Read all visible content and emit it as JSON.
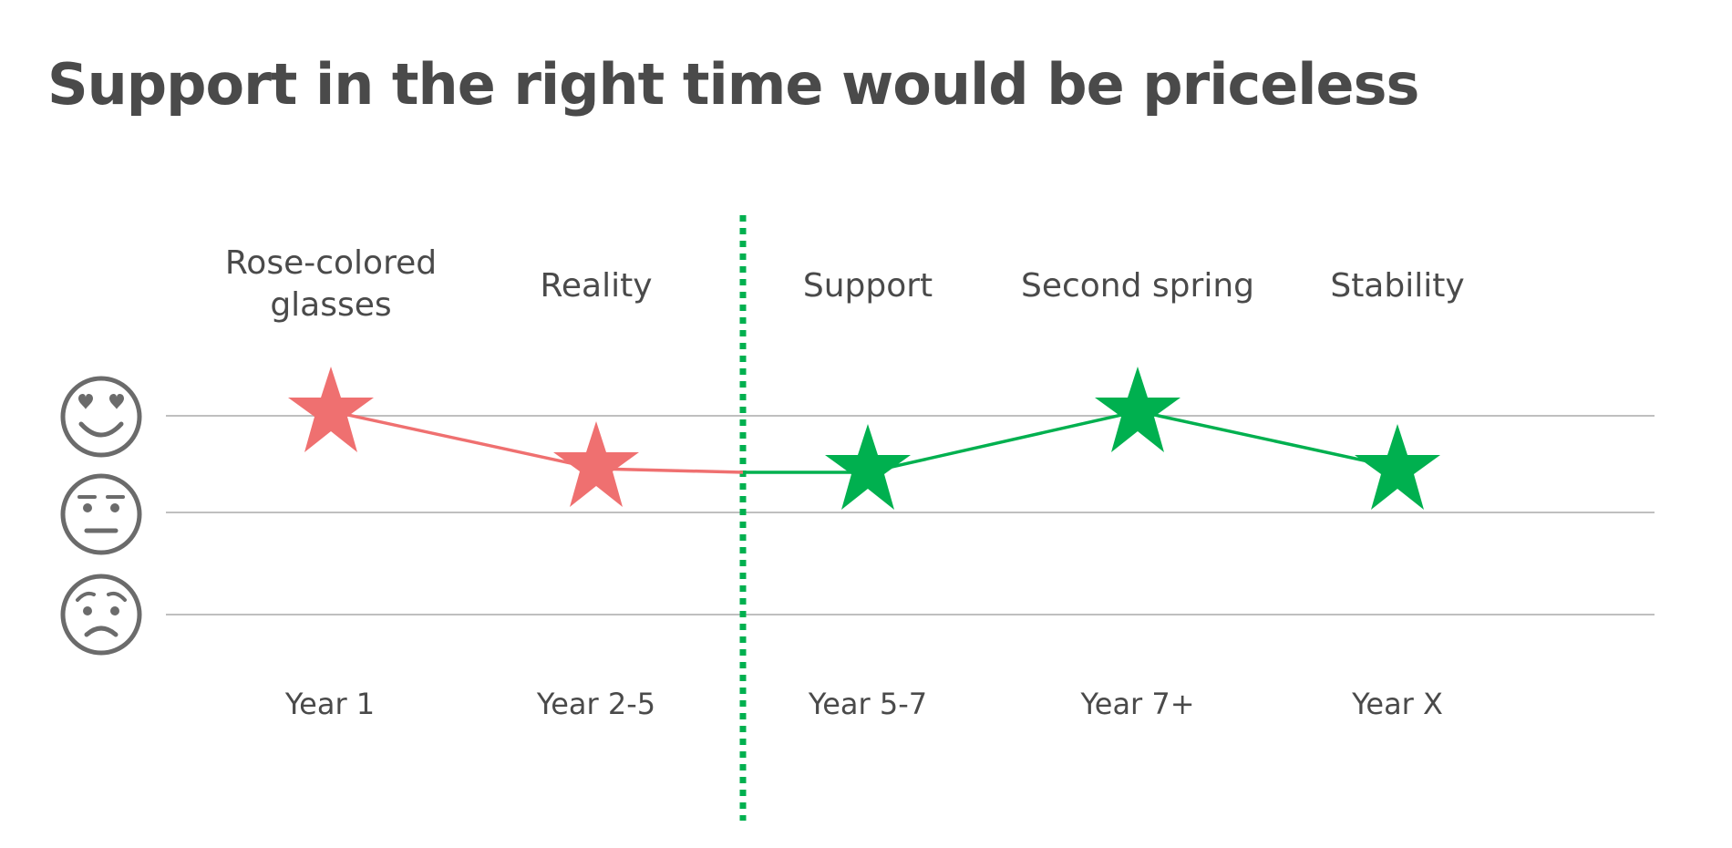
{
  "title": "Support in the right time would be priceless",
  "stages": [
    {
      "name": "Rose-colored glasses",
      "period": "Year 1",
      "mood": "happy",
      "phase": "before"
    },
    {
      "name": "Reality",
      "period": "Year 2-5",
      "mood": "between neutral and happy",
      "phase": "before"
    },
    {
      "name": "Support",
      "period": "Year 5-7",
      "mood": "between neutral and happy",
      "phase": "after"
    },
    {
      "name": "Second spring",
      "period": "Year 7+",
      "mood": "happy",
      "phase": "after"
    },
    {
      "name": "Stability",
      "period": "Year X",
      "mood": "between neutral and happy",
      "phase": "after"
    }
  ],
  "mood_scale": [
    {
      "level": "happy",
      "icon": "heart-eyes-face-icon"
    },
    {
      "level": "neutral",
      "icon": "neutral-face-icon"
    },
    {
      "level": "sad",
      "icon": "worried-face-icon"
    }
  ],
  "colors": {
    "before": "#ef7070",
    "after": "#00b04f",
    "divider": "#00b04f",
    "gridline": "#bfbfbf",
    "text": "#4a4a4a",
    "face": "#6b6b6b"
  }
}
